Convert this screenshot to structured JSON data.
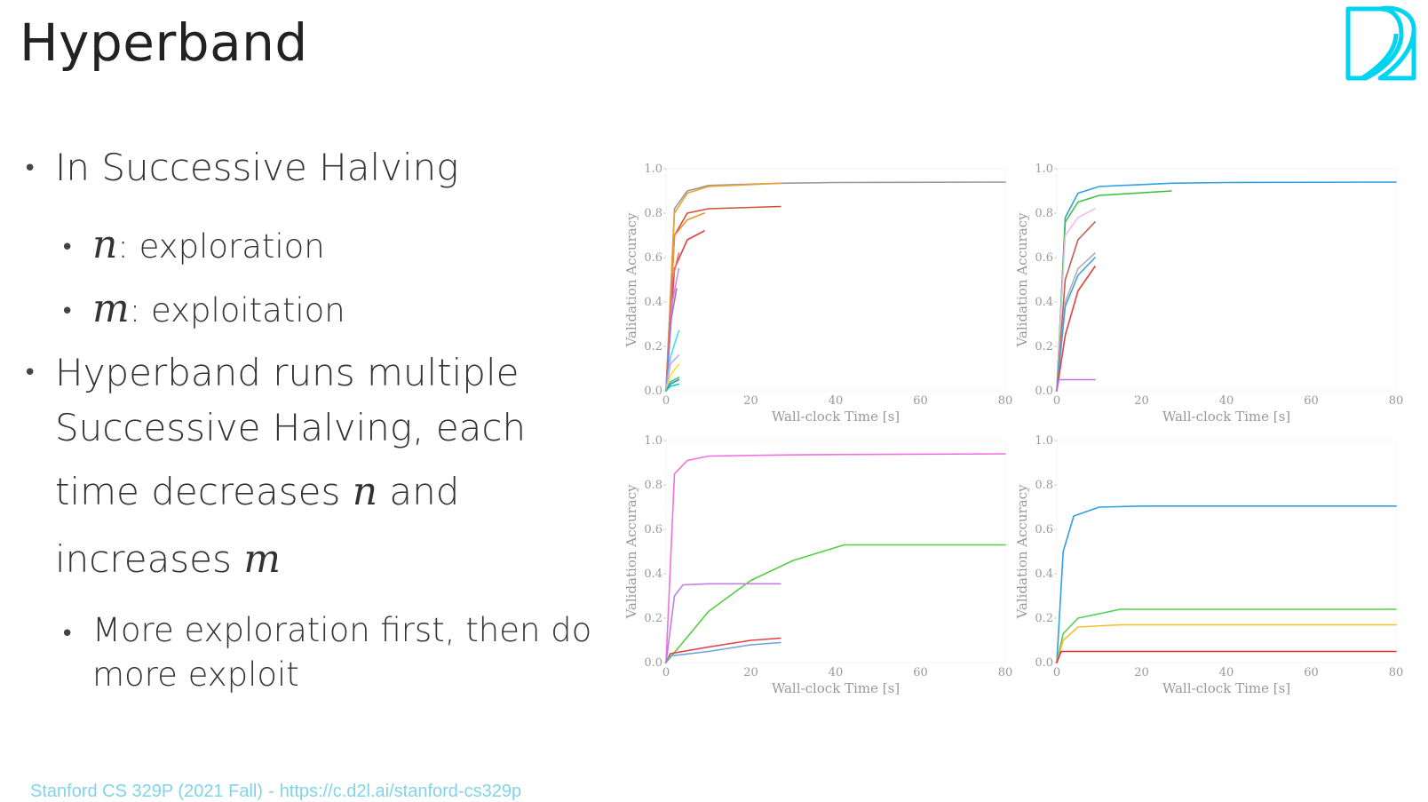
{
  "slide": {
    "title": "Hyperband",
    "footer": {
      "course": "Stanford CS 329P (2021 Fall)",
      "separator": "-",
      "url": "https://c.d2l.ai/stanford-cs329p"
    },
    "logo_icon": "d2l-logo-icon",
    "accent_color": "#00d4f0"
  },
  "bullets": {
    "b1": "In Successive Halving",
    "b1a_var": "n",
    "b1a_text": ": exploration",
    "b1b_var": "m",
    "b1b_text": ": exploitation",
    "b2_line1": "Hyperband runs multiple",
    "b2_line2": "Successive Halving, each",
    "b2_line3_pre": "time decreases ",
    "b2_line3_var": "n",
    "b2_line3_post": " and",
    "b2_line4_pre": "increases ",
    "b2_line4_var": "m",
    "b2a_line1": "More exploration first, then do",
    "b2a_line2": "more exploit"
  },
  "chart_data": [
    {
      "type": "line",
      "xlabel": "Wall-clock Time [s]",
      "ylabel": "Validation Accuracy",
      "xlim": [
        0,
        80
      ],
      "ylim": [
        0,
        1.0
      ],
      "xticks": [
        "0",
        "20",
        "40",
        "60",
        "80"
      ],
      "yticks": [
        "0.0",
        "0.2",
        "0.4",
        "0.6",
        "0.8",
        "1.0"
      ],
      "series": [
        {
          "color": "#999999",
          "x": [
            0,
            2,
            5,
            10,
            27,
            40,
            80
          ],
          "y": [
            0,
            0.82,
            0.9,
            0.925,
            0.935,
            0.938,
            0.94
          ]
        },
        {
          "color": "#f0a030",
          "x": [
            0,
            2,
            5,
            10,
            27
          ],
          "y": [
            0,
            0.8,
            0.89,
            0.92,
            0.935
          ]
        },
        {
          "color": "#d05030",
          "x": [
            0,
            2,
            5,
            10,
            27
          ],
          "y": [
            0,
            0.7,
            0.8,
            0.82,
            0.83
          ]
        },
        {
          "color": "#f09030",
          "x": [
            0,
            2,
            5,
            9
          ],
          "y": [
            0,
            0.7,
            0.77,
            0.8
          ]
        },
        {
          "color": "#e04040",
          "x": [
            0,
            2,
            5,
            9
          ],
          "y": [
            0,
            0.55,
            0.68,
            0.72
          ]
        },
        {
          "color": "#e87070",
          "x": [
            0,
            1.5,
            3
          ],
          "y": [
            0,
            0.5,
            0.62
          ]
        },
        {
          "color": "#c090e0",
          "x": [
            0,
            1.5,
            3
          ],
          "y": [
            0,
            0.4,
            0.55
          ]
        },
        {
          "color": "#a070d0",
          "x": [
            0,
            1.2,
            2.5
          ],
          "y": [
            0,
            0.32,
            0.46
          ]
        },
        {
          "color": "#40e0f0",
          "x": [
            0,
            1,
            3
          ],
          "y": [
            0,
            0.15,
            0.27
          ]
        },
        {
          "color": "#d0a0f0",
          "x": [
            0,
            1,
            3
          ],
          "y": [
            0,
            0.12,
            0.16
          ]
        },
        {
          "color": "#f0e040",
          "x": [
            0,
            1,
            3
          ],
          "y": [
            0,
            0.07,
            0.12
          ]
        },
        {
          "color": "#40d060",
          "x": [
            0,
            1,
            3
          ],
          "y": [
            0,
            0.04,
            0.06
          ]
        },
        {
          "color": "#4080e0",
          "x": [
            0,
            1,
            3
          ],
          "y": [
            0,
            0.03,
            0.05
          ]
        },
        {
          "color": "#00d0d0",
          "x": [
            0,
            1,
            3
          ],
          "y": [
            0,
            0.02,
            0.03
          ]
        }
      ]
    },
    {
      "type": "line",
      "xlabel": "Wall-clock Time [s]",
      "ylabel": "Validation Accuracy",
      "xlim": [
        0,
        80
      ],
      "ylim": [
        0,
        1.0
      ],
      "xticks": [
        "0",
        "20",
        "40",
        "60",
        "80"
      ],
      "yticks": [
        "0.0",
        "0.2",
        "0.4",
        "0.6",
        "0.8",
        "1.0"
      ],
      "series": [
        {
          "color": "#30a0e0",
          "x": [
            0,
            2,
            5,
            10,
            27,
            40,
            80
          ],
          "y": [
            0,
            0.78,
            0.89,
            0.92,
            0.935,
            0.938,
            0.94
          ]
        },
        {
          "color": "#40c040",
          "x": [
            0,
            2,
            5,
            10,
            27
          ],
          "y": [
            0,
            0.76,
            0.85,
            0.88,
            0.9
          ]
        },
        {
          "color": "#f0c0e0",
          "x": [
            0,
            2,
            5,
            9
          ],
          "y": [
            0,
            0.7,
            0.78,
            0.82
          ]
        },
        {
          "color": "#c06050",
          "x": [
            0,
            2,
            5,
            9
          ],
          "y": [
            0,
            0.5,
            0.68,
            0.76
          ]
        },
        {
          "color": "#b0b0b0",
          "x": [
            0,
            2,
            5,
            9
          ],
          "y": [
            0,
            0.4,
            0.55,
            0.62
          ]
        },
        {
          "color": "#40a0e0",
          "x": [
            0,
            2,
            5,
            9
          ],
          "y": [
            0,
            0.38,
            0.52,
            0.6
          ]
        },
        {
          "color": "#e04040",
          "x": [
            0,
            2,
            5,
            9
          ],
          "y": [
            0,
            0.25,
            0.45,
            0.56
          ]
        },
        {
          "color": "#c070e0",
          "x": [
            0,
            0.5,
            2,
            9
          ],
          "y": [
            0,
            0.05,
            0.05,
            0.05
          ]
        }
      ]
    },
    {
      "type": "line",
      "xlabel": "Wall-clock Time [s]",
      "ylabel": "Validation Accuracy",
      "xlim": [
        0,
        80
      ],
      "ylim": [
        0,
        1.0
      ],
      "xticks": [
        "0",
        "20",
        "40",
        "60",
        "80"
      ],
      "yticks": [
        "0.0",
        "0.2",
        "0.4",
        "0.6",
        "0.8",
        "1.0"
      ],
      "series": [
        {
          "color": "#f070e0",
          "x": [
            0,
            2,
            5,
            10,
            27,
            40,
            80
          ],
          "y": [
            0,
            0.85,
            0.91,
            0.93,
            0.935,
            0.937,
            0.94
          ]
        },
        {
          "color": "#50d040",
          "x": [
            0,
            10,
            20,
            30,
            42,
            80
          ],
          "y": [
            0,
            0.23,
            0.37,
            0.46,
            0.53,
            0.53
          ]
        },
        {
          "color": "#c080e0",
          "x": [
            0,
            2,
            4,
            10,
            27
          ],
          "y": [
            0,
            0.3,
            0.35,
            0.355,
            0.355
          ]
        },
        {
          "color": "#e04040",
          "x": [
            0,
            1,
            10,
            20,
            27
          ],
          "y": [
            0,
            0.04,
            0.07,
            0.1,
            0.11
          ]
        },
        {
          "color": "#70a0e0",
          "x": [
            0,
            1,
            10,
            20,
            27
          ],
          "y": [
            0,
            0.03,
            0.05,
            0.08,
            0.09
          ]
        }
      ]
    },
    {
      "type": "line",
      "xlabel": "Wall-clock Time [s]",
      "ylabel": "Validation Accuracy",
      "xlim": [
        0,
        80
      ],
      "ylim": [
        0,
        1.0
      ],
      "xticks": [
        "0",
        "20",
        "40",
        "60",
        "80"
      ],
      "yticks": [
        "0.0",
        "0.2",
        "0.4",
        "0.6",
        "0.8",
        "1.0"
      ],
      "series": [
        {
          "color": "#30a0e0",
          "x": [
            0,
            1.5,
            4,
            10,
            20,
            80
          ],
          "y": [
            0,
            0.5,
            0.66,
            0.7,
            0.705,
            0.705
          ]
        },
        {
          "color": "#50d050",
          "x": [
            0,
            1.5,
            5,
            15,
            80
          ],
          "y": [
            0,
            0.13,
            0.2,
            0.24,
            0.24
          ]
        },
        {
          "color": "#f0c030",
          "x": [
            0,
            1.5,
            5,
            15,
            80
          ],
          "y": [
            0,
            0.1,
            0.16,
            0.17,
            0.17
          ]
        },
        {
          "color": "#e03030",
          "x": [
            0,
            1,
            2,
            80
          ],
          "y": [
            0,
            0.05,
            0.05,
            0.05
          ]
        }
      ]
    }
  ]
}
